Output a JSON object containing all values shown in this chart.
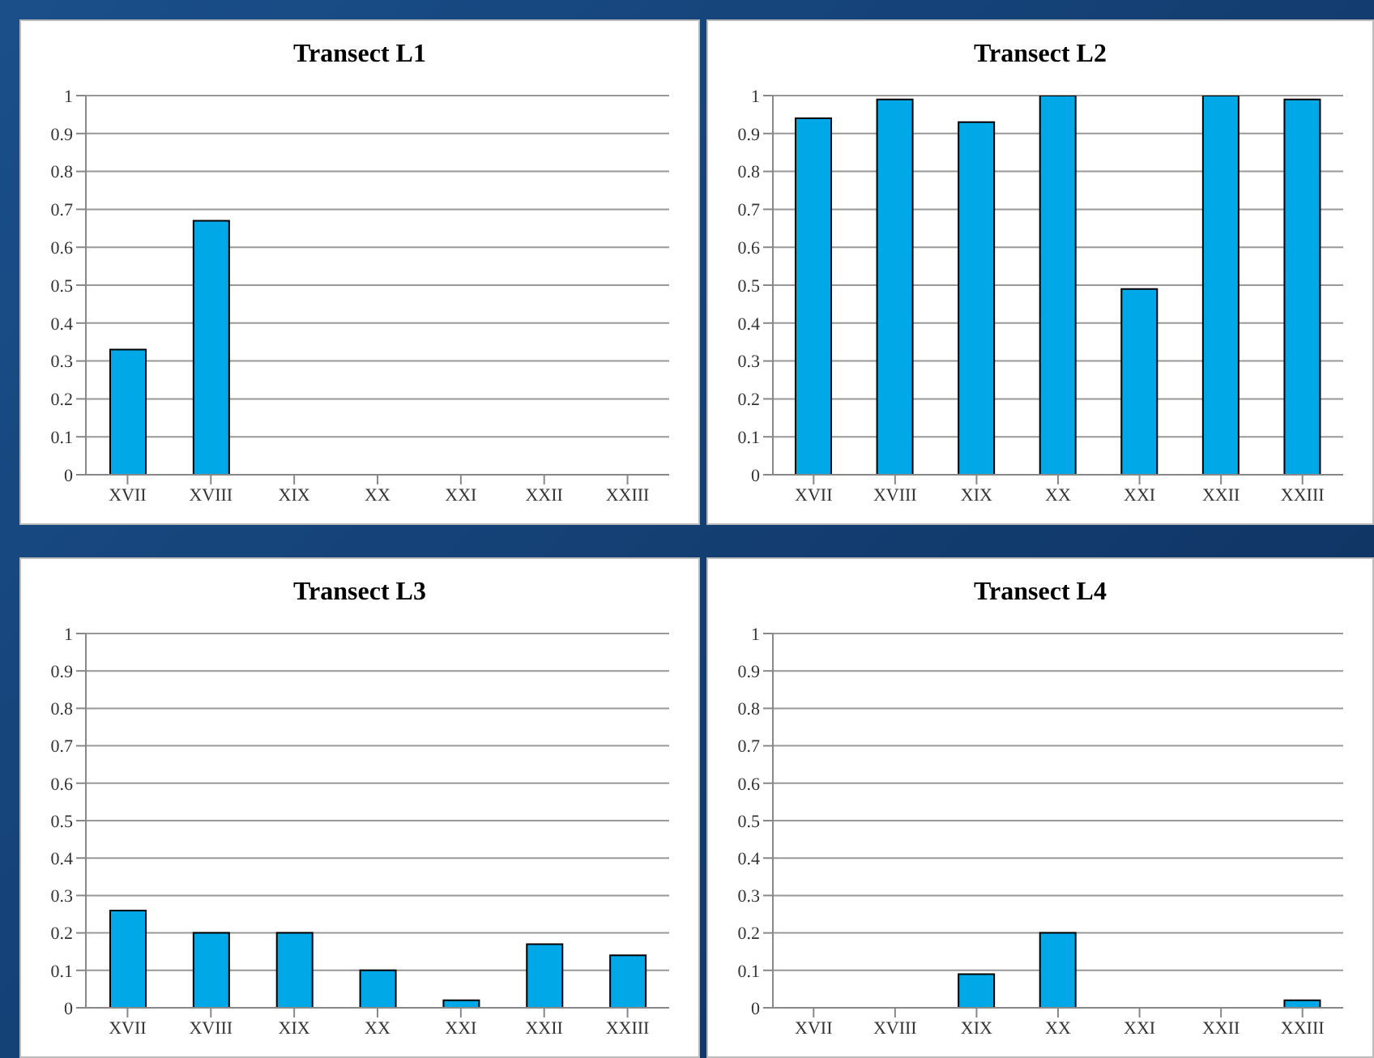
{
  "chart_data": [
    {
      "type": "bar",
      "title": "Transect L1",
      "categories": [
        "XVII",
        "XVIII",
        "XIX",
        "XX",
        "XXI",
        "XXII",
        "XXIII"
      ],
      "values": [
        0.33,
        0.67,
        0,
        0,
        0,
        0,
        0
      ],
      "color": "#00a8e8",
      "ylim": [
        0,
        1
      ],
      "yticks": [
        0,
        0.1,
        0.2,
        0.3,
        0.4,
        0.5,
        0.6,
        0.7,
        0.8,
        0.9,
        1
      ],
      "grid": "y"
    },
    {
      "type": "bar",
      "title": "Transect L2",
      "categories": [
        "XVII",
        "XVIII",
        "XIX",
        "XX",
        "XXI",
        "XXII",
        "XXIII"
      ],
      "values": [
        0.94,
        0.99,
        0.93,
        1,
        0.49,
        1,
        0.99
      ],
      "color": "#00a8e8",
      "ylim": [
        0,
        1
      ],
      "yticks": [
        0,
        0.1,
        0.2,
        0.3,
        0.4,
        0.5,
        0.6,
        0.7,
        0.8,
        0.9,
        1
      ],
      "grid": "y"
    },
    {
      "type": "bar",
      "title": "Transect L3",
      "categories": [
        "XVII",
        "XVIII",
        "XIX",
        "XX",
        "XXI",
        "XXII",
        "XXIII"
      ],
      "values": [
        0.26,
        0.2,
        0.2,
        0.1,
        0.02,
        0.17,
        0.14
      ],
      "color": "#00a8e8",
      "ylim": [
        0,
        1
      ],
      "yticks": [
        0,
        0.1,
        0.2,
        0.3,
        0.4,
        0.5,
        0.6,
        0.7,
        0.8,
        0.9,
        1
      ],
      "grid": "y"
    },
    {
      "type": "bar",
      "title": "Transect L4",
      "categories": [
        "XVII",
        "XVIII",
        "XIX",
        "XX",
        "XXI",
        "XXII",
        "XXIII"
      ],
      "values": [
        0,
        0,
        0.09,
        0.2,
        0,
        0,
        0.02
      ],
      "color": "#00a8e8",
      "ylim": [
        0,
        1
      ],
      "yticks": [
        0,
        0.1,
        0.2,
        0.3,
        0.4,
        0.5,
        0.6,
        0.7,
        0.8,
        0.9,
        1
      ],
      "grid": "y"
    }
  ]
}
